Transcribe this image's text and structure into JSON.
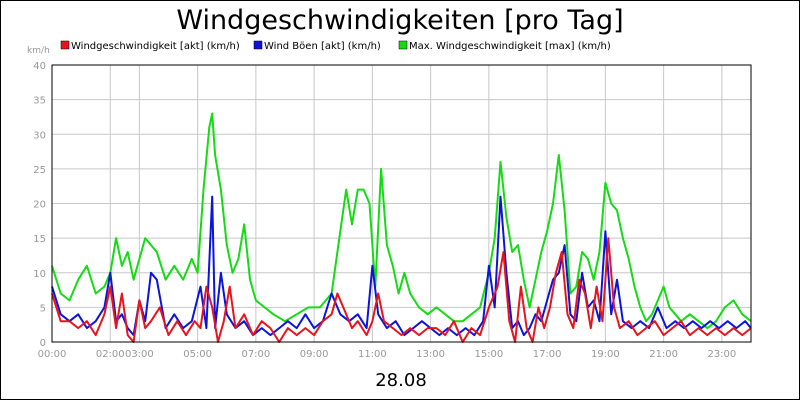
{
  "chart_data": {
    "type": "line",
    "title": "Windgeschwindigkeiten [pro Tag]",
    "xlabel": "28.08",
    "ylabel": "km/h",
    "ylim": [
      0,
      40
    ],
    "yticks": [
      0,
      5,
      10,
      15,
      20,
      25,
      30,
      35,
      40
    ],
    "xlim_hours": [
      0,
      24
    ],
    "xticks": [
      {
        "hour": 0,
        "label": "00:00"
      },
      {
        "hour": 2,
        "label": "02:00"
      },
      {
        "hour": 3,
        "label": "03:00"
      },
      {
        "hour": 5,
        "label": "05:00"
      },
      {
        "hour": 7,
        "label": "07:00"
      },
      {
        "hour": 9,
        "label": "09:00"
      },
      {
        "hour": 11,
        "label": "11:00"
      },
      {
        "hour": 13,
        "label": "13:00"
      },
      {
        "hour": 15,
        "label": "15:00"
      },
      {
        "hour": 17,
        "label": "17:00"
      },
      {
        "hour": 19,
        "label": "19:00"
      },
      {
        "hour": 21,
        "label": "21:00"
      },
      {
        "hour": 23,
        "label": "23:00"
      }
    ],
    "grid": true,
    "legend_position": "top",
    "series": [
      {
        "name": "Windgeschwindigkeit [akt] (km/h)",
        "color": "#e8141c",
        "points": [
          [
            0.0,
            7
          ],
          [
            0.3,
            3
          ],
          [
            0.6,
            3
          ],
          [
            0.9,
            2
          ],
          [
            1.2,
            3
          ],
          [
            1.5,
            1
          ],
          [
            1.8,
            4
          ],
          [
            2.0,
            8
          ],
          [
            2.2,
            2
          ],
          [
            2.4,
            7
          ],
          [
            2.6,
            1
          ],
          [
            2.8,
            0
          ],
          [
            3.0,
            6
          ],
          [
            3.2,
            2
          ],
          [
            3.4,
            3
          ],
          [
            3.7,
            5
          ],
          [
            4.0,
            1
          ],
          [
            4.3,
            3
          ],
          [
            4.6,
            1
          ],
          [
            4.9,
            3
          ],
          [
            5.1,
            2
          ],
          [
            5.3,
            8
          ],
          [
            5.5,
            5
          ],
          [
            5.7,
            0
          ],
          [
            5.9,
            3
          ],
          [
            6.1,
            8
          ],
          [
            6.3,
            2
          ],
          [
            6.6,
            4
          ],
          [
            6.9,
            1
          ],
          [
            7.2,
            3
          ],
          [
            7.5,
            2
          ],
          [
            7.8,
            0
          ],
          [
            8.1,
            2
          ],
          [
            8.4,
            1
          ],
          [
            8.7,
            2
          ],
          [
            9.0,
            1
          ],
          [
            9.3,
            3
          ],
          [
            9.6,
            4
          ],
          [
            9.8,
            7
          ],
          [
            10.0,
            5
          ],
          [
            10.3,
            2
          ],
          [
            10.5,
            3
          ],
          [
            10.8,
            1
          ],
          [
            11.0,
            3
          ],
          [
            11.2,
            7
          ],
          [
            11.4,
            3
          ],
          [
            11.7,
            2
          ],
          [
            12.0,
            1
          ],
          [
            12.3,
            2
          ],
          [
            12.6,
            1
          ],
          [
            12.9,
            2
          ],
          [
            13.2,
            2
          ],
          [
            13.5,
            1
          ],
          [
            13.8,
            3
          ],
          [
            14.1,
            0
          ],
          [
            14.4,
            2
          ],
          [
            14.7,
            1
          ],
          [
            15.0,
            5
          ],
          [
            15.3,
            8
          ],
          [
            15.5,
            13
          ],
          [
            15.7,
            3
          ],
          [
            15.9,
            0
          ],
          [
            16.1,
            8
          ],
          [
            16.3,
            2
          ],
          [
            16.5,
            0
          ],
          [
            16.7,
            5
          ],
          [
            16.9,
            2
          ],
          [
            17.1,
            5
          ],
          [
            17.3,
            10
          ],
          [
            17.5,
            13
          ],
          [
            17.7,
            4
          ],
          [
            17.9,
            2
          ],
          [
            18.1,
            9
          ],
          [
            18.3,
            7
          ],
          [
            18.5,
            2
          ],
          [
            18.7,
            8
          ],
          [
            18.9,
            3
          ],
          [
            19.1,
            15
          ],
          [
            19.3,
            5
          ],
          [
            19.5,
            2
          ],
          [
            19.8,
            3
          ],
          [
            20.1,
            1
          ],
          [
            20.4,
            2
          ],
          [
            20.7,
            3
          ],
          [
            21.0,
            1
          ],
          [
            21.3,
            2
          ],
          [
            21.6,
            3
          ],
          [
            21.9,
            1
          ],
          [
            22.2,
            2
          ],
          [
            22.5,
            1
          ],
          [
            22.8,
            2
          ],
          [
            23.1,
            1
          ],
          [
            23.4,
            2
          ],
          [
            23.7,
            1
          ],
          [
            24.0,
            2
          ]
        ]
      },
      {
        "name": "Wind Böen [akt] (km/h)",
        "color": "#0c14dc",
        "points": [
          [
            0.0,
            8
          ],
          [
            0.3,
            4
          ],
          [
            0.6,
            3
          ],
          [
            0.9,
            4
          ],
          [
            1.2,
            2
          ],
          [
            1.5,
            3
          ],
          [
            1.8,
            5
          ],
          [
            2.0,
            10
          ],
          [
            2.2,
            3
          ],
          [
            2.4,
            4
          ],
          [
            2.6,
            2
          ],
          [
            2.8,
            1
          ],
          [
            3.0,
            6
          ],
          [
            3.2,
            3
          ],
          [
            3.4,
            10
          ],
          [
            3.6,
            9
          ],
          [
            3.9,
            2
          ],
          [
            4.2,
            4
          ],
          [
            4.5,
            2
          ],
          [
            4.8,
            3
          ],
          [
            5.1,
            8
          ],
          [
            5.3,
            2
          ],
          [
            5.5,
            21
          ],
          [
            5.6,
            2
          ],
          [
            5.8,
            10
          ],
          [
            6.0,
            4
          ],
          [
            6.3,
            2
          ],
          [
            6.6,
            3
          ],
          [
            6.9,
            1
          ],
          [
            7.2,
            2
          ],
          [
            7.5,
            1
          ],
          [
            7.8,
            2
          ],
          [
            8.1,
            3
          ],
          [
            8.4,
            2
          ],
          [
            8.7,
            4
          ],
          [
            9.0,
            2
          ],
          [
            9.3,
            3
          ],
          [
            9.6,
            7
          ],
          [
            9.9,
            4
          ],
          [
            10.2,
            3
          ],
          [
            10.5,
            4
          ],
          [
            10.8,
            2
          ],
          [
            11.0,
            11
          ],
          [
            11.2,
            4
          ],
          [
            11.5,
            2
          ],
          [
            11.8,
            3
          ],
          [
            12.1,
            1
          ],
          [
            12.4,
            2
          ],
          [
            12.7,
            3
          ],
          [
            13.0,
            2
          ],
          [
            13.3,
            1
          ],
          [
            13.6,
            2
          ],
          [
            13.9,
            1
          ],
          [
            14.2,
            2
          ],
          [
            14.5,
            1
          ],
          [
            14.8,
            3
          ],
          [
            15.0,
            11
          ],
          [
            15.2,
            5
          ],
          [
            15.4,
            21
          ],
          [
            15.6,
            10
          ],
          [
            15.8,
            2
          ],
          [
            16.0,
            3
          ],
          [
            16.2,
            1
          ],
          [
            16.4,
            2
          ],
          [
            16.6,
            4
          ],
          [
            16.8,
            3
          ],
          [
            17.0,
            6
          ],
          [
            17.2,
            9
          ],
          [
            17.4,
            10
          ],
          [
            17.6,
            14
          ],
          [
            17.8,
            4
          ],
          [
            18.0,
            3
          ],
          [
            18.2,
            10
          ],
          [
            18.4,
            5
          ],
          [
            18.6,
            6
          ],
          [
            18.8,
            3
          ],
          [
            19.0,
            16
          ],
          [
            19.2,
            4
          ],
          [
            19.4,
            9
          ],
          [
            19.6,
            3
          ],
          [
            19.9,
            2
          ],
          [
            20.2,
            3
          ],
          [
            20.5,
            2
          ],
          [
            20.8,
            5
          ],
          [
            21.1,
            2
          ],
          [
            21.4,
            3
          ],
          [
            21.7,
            2
          ],
          [
            22.0,
            3
          ],
          [
            22.3,
            2
          ],
          [
            22.6,
            3
          ],
          [
            22.9,
            2
          ],
          [
            23.2,
            3
          ],
          [
            23.5,
            2
          ],
          [
            23.8,
            3
          ],
          [
            24.0,
            2
          ]
        ]
      },
      {
        "name": "Max. Windgeschwindigkeit [max] (km/h)",
        "color": "#14dc14",
        "points": [
          [
            0.0,
            11
          ],
          [
            0.3,
            7
          ],
          [
            0.6,
            6
          ],
          [
            0.9,
            9
          ],
          [
            1.2,
            11
          ],
          [
            1.5,
            7
          ],
          [
            1.8,
            8
          ],
          [
            2.0,
            10
          ],
          [
            2.2,
            15
          ],
          [
            2.4,
            11
          ],
          [
            2.6,
            13
          ],
          [
            2.8,
            9
          ],
          [
            3.0,
            12
          ],
          [
            3.2,
            15
          ],
          [
            3.4,
            14
          ],
          [
            3.6,
            13
          ],
          [
            3.9,
            9
          ],
          [
            4.2,
            11
          ],
          [
            4.5,
            9
          ],
          [
            4.8,
            12
          ],
          [
            5.0,
            10
          ],
          [
            5.2,
            22
          ],
          [
            5.4,
            31
          ],
          [
            5.5,
            33
          ],
          [
            5.6,
            27
          ],
          [
            5.8,
            22
          ],
          [
            6.0,
            14
          ],
          [
            6.2,
            10
          ],
          [
            6.4,
            12
          ],
          [
            6.6,
            17
          ],
          [
            6.8,
            9
          ],
          [
            7.0,
            6
          ],
          [
            7.3,
            5
          ],
          [
            7.6,
            4
          ],
          [
            8.0,
            3
          ],
          [
            8.4,
            4
          ],
          [
            8.8,
            5
          ],
          [
            9.2,
            5
          ],
          [
            9.6,
            7
          ],
          [
            9.9,
            16
          ],
          [
            10.1,
            22
          ],
          [
            10.3,
            17
          ],
          [
            10.5,
            22
          ],
          [
            10.7,
            22
          ],
          [
            10.9,
            20
          ],
          [
            11.1,
            8
          ],
          [
            11.3,
            25
          ],
          [
            11.5,
            14
          ],
          [
            11.7,
            11
          ],
          [
            11.9,
            7
          ],
          [
            12.1,
            10
          ],
          [
            12.3,
            7
          ],
          [
            12.6,
            5
          ],
          [
            12.9,
            4
          ],
          [
            13.2,
            5
          ],
          [
            13.5,
            4
          ],
          [
            13.8,
            3
          ],
          [
            14.1,
            3
          ],
          [
            14.4,
            4
          ],
          [
            14.7,
            5
          ],
          [
            15.0,
            10
          ],
          [
            15.2,
            15
          ],
          [
            15.4,
            26
          ],
          [
            15.6,
            18
          ],
          [
            15.8,
            13
          ],
          [
            16.0,
            14
          ],
          [
            16.2,
            9
          ],
          [
            16.4,
            5
          ],
          [
            16.6,
            9
          ],
          [
            16.8,
            13
          ],
          [
            17.0,
            16
          ],
          [
            17.2,
            20
          ],
          [
            17.4,
            27
          ],
          [
            17.6,
            19
          ],
          [
            17.8,
            7
          ],
          [
            18.0,
            8
          ],
          [
            18.2,
            13
          ],
          [
            18.4,
            12
          ],
          [
            18.6,
            9
          ],
          [
            18.8,
            13
          ],
          [
            19.0,
            23
          ],
          [
            19.2,
            20
          ],
          [
            19.4,
            19
          ],
          [
            19.6,
            15
          ],
          [
            19.8,
            12
          ],
          [
            20.0,
            8
          ],
          [
            20.2,
            5
          ],
          [
            20.4,
            3
          ],
          [
            20.6,
            4
          ],
          [
            20.8,
            6
          ],
          [
            21.0,
            8
          ],
          [
            21.2,
            5
          ],
          [
            21.4,
            4
          ],
          [
            21.6,
            3
          ],
          [
            21.9,
            4
          ],
          [
            22.2,
            3
          ],
          [
            22.5,
            2
          ],
          [
            22.8,
            3
          ],
          [
            23.1,
            5
          ],
          [
            23.4,
            6
          ],
          [
            23.7,
            4
          ],
          [
            24.0,
            3
          ]
        ]
      }
    ]
  },
  "footer_label": "28.08"
}
